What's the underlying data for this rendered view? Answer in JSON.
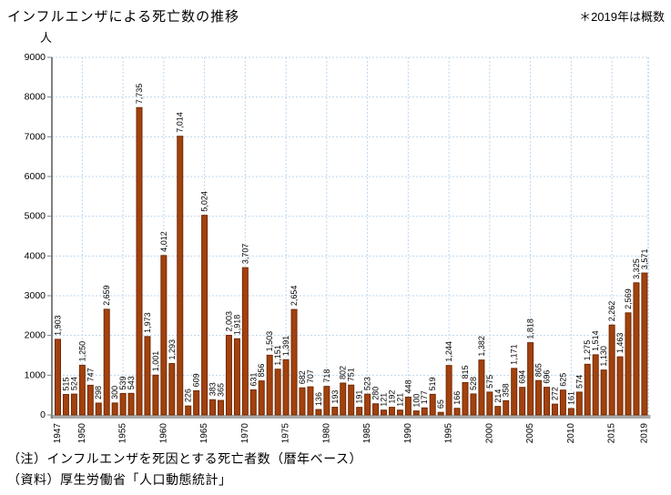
{
  "title": "インフルエンザによる死亡数の推移",
  "note": "＊2019年は概数",
  "footnotes": [
    "（注）インフルエンザを死因とする死亡者数（暦年ベース）",
    "（資料）厚生労働省「人口動態統計」"
  ],
  "chart_data": {
    "type": "bar",
    "title": "インフルエンザによる死亡数の推移",
    "ylabel": "人",
    "xlabel": "",
    "ylim": [
      0,
      9000
    ],
    "ytick_step": 1000,
    "grid": true,
    "legend": false,
    "years": [
      1947,
      1948,
      1949,
      1950,
      1951,
      1952,
      1953,
      1954,
      1955,
      1956,
      1957,
      1958,
      1959,
      1960,
      1961,
      1962,
      1963,
      1964,
      1965,
      1966,
      1967,
      1968,
      1969,
      1970,
      1971,
      1972,
      1973,
      1974,
      1975,
      1976,
      1977,
      1978,
      1979,
      1980,
      1981,
      1982,
      1983,
      1984,
      1985,
      1986,
      1987,
      1988,
      1989,
      1990,
      1991,
      1992,
      1993,
      1994,
      1995,
      1996,
      1997,
      1998,
      1999,
      2000,
      2001,
      2002,
      2003,
      2004,
      2005,
      2006,
      2007,
      2008,
      2009,
      2010,
      2011,
      2012,
      2013,
      2014,
      2015,
      2016,
      2017,
      2018,
      2019
    ],
    "values": [
      1903,
      515,
      524,
      1250,
      747,
      298,
      2659,
      300,
      539,
      543,
      7735,
      1973,
      1001,
      4012,
      1293,
      7014,
      226,
      609,
      5024,
      383,
      365,
      2003,
      1918,
      3707,
      631,
      856,
      1503,
      1151,
      1391,
      2654,
      682,
      707,
      136,
      718,
      193,
      802,
      751,
      191,
      523,
      280,
      121,
      192,
      121,
      448,
      100,
      177,
      519,
      65,
      1244,
      166,
      815,
      528,
      1382,
      575,
      214,
      358,
      1171,
      694,
      1818,
      865,
      696,
      272,
      625,
      161,
      574,
      1275,
      1514,
      1130,
      2262,
      1463,
      2569,
      3325,
      3571
    ],
    "x_axis_ticks": [
      1947,
      1950,
      1955,
      1960,
      1965,
      1970,
      1975,
      1980,
      1985,
      1990,
      1995,
      2000,
      2005,
      2010,
      2015,
      2019
    ],
    "colors": {
      "bar_fill": "#A3410E",
      "bar_border": "#6F2B05",
      "gridline": "#BDD7EE",
      "axis": "#808080",
      "baseline_band": "#A8A8A8",
      "label_text": "#000000"
    }
  }
}
